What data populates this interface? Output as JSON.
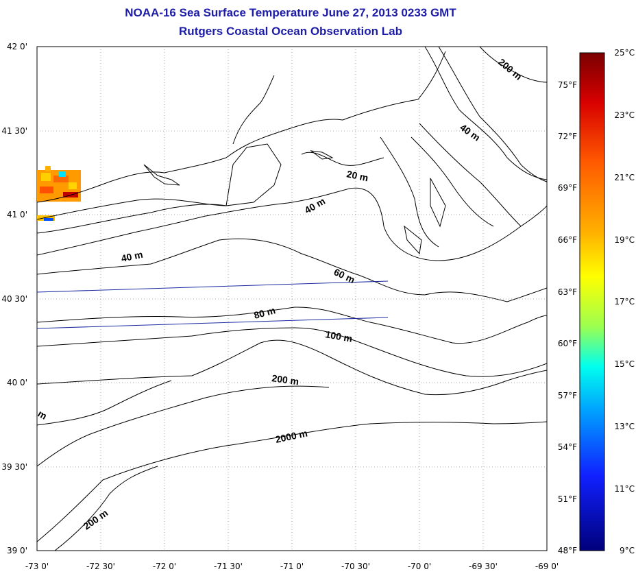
{
  "header": {
    "title": "NOAA-16 Sea Surface Temperature June 27, 2013 0233 GMT",
    "subtitle": "Rutgers Coastal Ocean Observation Lab"
  },
  "map": {
    "lon_ticks": [
      "-73 0'",
      "-72 30'",
      "-72 0'",
      "-71 30'",
      "-71 0'",
      "-70 30'",
      "-70 0'",
      "-69 30'",
      "-69 0'"
    ],
    "lat_ticks": [
      "42 0'",
      "41 30'",
      "41 0'",
      "40 30'",
      "40 0'",
      "39 30'",
      "39 0'"
    ],
    "f_ticks": [
      "75°F",
      "72°F",
      "69°F",
      "66°F",
      "63°F",
      "60°F",
      "57°F",
      "54°F",
      "51°F",
      "48°F"
    ],
    "contour_labels": [
      "200 m",
      "40 m",
      "20 m",
      "40 m",
      "40 m",
      "60 m",
      "80 m",
      "100 m",
      "200 m",
      "2000 m",
      "200 m",
      "m"
    ],
    "grid": true,
    "line_color": "#000000",
    "track_color": "#1a2aa0"
  },
  "colorbar": {
    "c_ticks": [
      "25°C",
      "23°C",
      "21°C",
      "19°C",
      "17°C",
      "15°C",
      "13°C",
      "11°C",
      "9°C"
    ],
    "colors": [
      "#7a0000",
      "#d80000",
      "#ff5a00",
      "#ffb000",
      "#ffff00",
      "#9cff50",
      "#00ffee",
      "#00a0ff",
      "#1020ff",
      "#00007a"
    ]
  }
}
